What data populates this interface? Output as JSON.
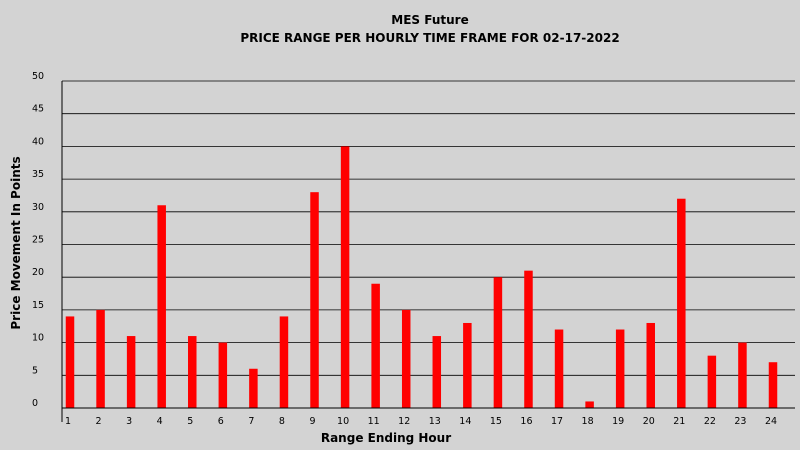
{
  "chart_data": {
    "type": "bar",
    "title": "MES Future",
    "subtitle": "PRICE RANGE PER HOURLY TIME FRAME FOR 02-17-2022",
    "xlabel": "Range Ending Hour",
    "ylabel": "Price Movement In Points",
    "categories": [
      "1",
      "2",
      "3",
      "4",
      "5",
      "6",
      "7",
      "8",
      "9",
      "10",
      "11",
      "12",
      "13",
      "14",
      "15",
      "16",
      "17",
      "18",
      "19",
      "20",
      "21",
      "22",
      "23",
      "24"
    ],
    "series": [
      {
        "values": [
          14,
          15,
          11,
          31,
          11,
          10,
          6,
          14,
          33,
          40,
          19,
          15,
          11,
          13,
          20,
          21,
          12,
          1,
          12,
          13,
          32,
          8,
          10,
          7
        ]
      }
    ],
    "ylim": [
      0,
      50
    ],
    "yticks": [
      0,
      5,
      10,
      15,
      20,
      25,
      30,
      35,
      40,
      45,
      50
    ],
    "grid": true,
    "legend": "none",
    "colors": {
      "bar": "#ff0000",
      "background": "#d3d3d3",
      "grid": "#000000"
    }
  }
}
